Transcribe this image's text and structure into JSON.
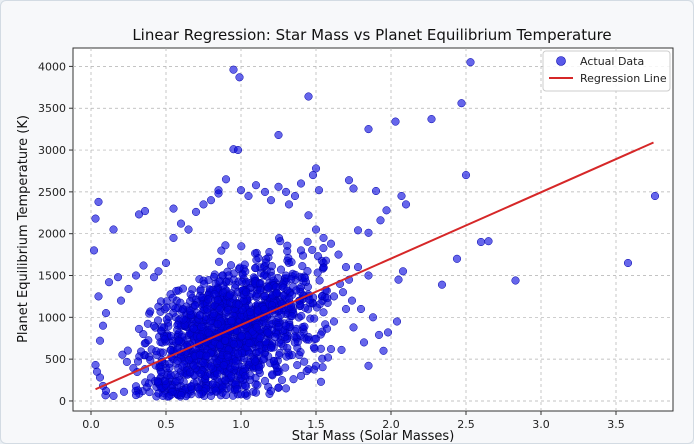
{
  "chart_data": {
    "type": "scatter",
    "title": "Linear Regression: Star Mass vs Planet Equilibrium Temperature",
    "xlabel": "Star Mass (Solar Masses)",
    "ylabel": "Planet Equilibrium Temperature (K)",
    "xlim": [
      -0.12,
      3.88
    ],
    "ylim": [
      -120,
      4220
    ],
    "xticks": [
      0.0,
      0.5,
      1.0,
      1.5,
      2.0,
      2.5,
      3.0,
      3.5
    ],
    "xtick_labels": [
      "0.0",
      "0.5",
      "1.0",
      "1.5",
      "2.0",
      "2.5",
      "3.0",
      "3.5"
    ],
    "yticks": [
      0,
      500,
      1000,
      1500,
      2000,
      2500,
      3000,
      3500,
      4000
    ],
    "ytick_labels": [
      "0",
      "500",
      "1000",
      "1500",
      "2000",
      "2500",
      "3000",
      "3500",
      "4000"
    ],
    "grid": true,
    "legend_position": "top-right",
    "series": [
      {
        "name": "Actual Data",
        "kind": "scatter",
        "color": "#0000dd",
        "points": [
          [
            0.02,
            1800
          ],
          [
            0.03,
            2180
          ],
          [
            0.05,
            2380
          ],
          [
            0.05,
            1250
          ],
          [
            0.15,
            2050
          ],
          [
            0.32,
            2230
          ],
          [
            0.36,
            2270
          ],
          [
            0.35,
            1620
          ],
          [
            0.9,
            2650
          ],
          [
            0.95,
            3960
          ],
          [
            0.99,
            3870
          ],
          [
            0.95,
            3010
          ],
          [
            0.98,
            3000
          ],
          [
            1.25,
            3180
          ],
          [
            1.45,
            3640
          ],
          [
            1.72,
            2640
          ],
          [
            1.85,
            3250
          ],
          [
            2.03,
            3340
          ],
          [
            2.27,
            3370
          ],
          [
            2.47,
            3560
          ],
          [
            2.53,
            4050
          ],
          [
            2.5,
            2700
          ],
          [
            2.6,
            1900
          ],
          [
            2.65,
            1910
          ],
          [
            2.83,
            1440
          ],
          [
            3.58,
            1650
          ],
          [
            3.76,
            2450
          ],
          [
            2.34,
            1390
          ],
          [
            2.44,
            1700
          ],
          [
            2.08,
            1550
          ],
          [
            2.05,
            1450
          ],
          [
            2.1,
            2350
          ],
          [
            2.07,
            2450
          ],
          [
            1.97,
            2280
          ],
          [
            1.93,
            2160
          ],
          [
            1.9,
            2510
          ],
          [
            1.75,
            2540
          ],
          [
            1.78,
            2040
          ],
          [
            1.85,
            2010
          ],
          [
            1.98,
            820
          ],
          [
            1.92,
            790
          ],
          [
            2.04,
            950
          ],
          [
            1.82,
            700
          ],
          [
            1.75,
            880
          ],
          [
            1.95,
            600
          ],
          [
            1.85,
            420
          ],
          [
            1.62,
            950
          ],
          [
            1.67,
            610
          ],
          [
            1.55,
            1060
          ],
          [
            1.48,
            2700
          ],
          [
            1.5,
            2780
          ],
          [
            1.52,
            2520
          ],
          [
            1.4,
            2600
          ],
          [
            1.36,
            2450
          ],
          [
            1.3,
            2500
          ],
          [
            1.25,
            2560
          ],
          [
            1.16,
            2500
          ],
          [
            1.1,
            2580
          ],
          [
            1.05,
            2450
          ],
          [
            0.85,
            2520
          ],
          [
            0.8,
            2400
          ],
          [
            0.75,
            2350
          ],
          [
            0.7,
            2260
          ],
          [
            0.65,
            2050
          ],
          [
            0.6,
            2120
          ],
          [
            0.55,
            1950
          ],
          [
            0.5,
            1650
          ],
          [
            0.45,
            1550
          ],
          [
            0.42,
            1480
          ],
          [
            0.3,
            1500
          ],
          [
            0.25,
            1340
          ],
          [
            0.2,
            1200
          ],
          [
            0.18,
            1480
          ],
          [
            0.12,
            1420
          ],
          [
            0.1,
            1050
          ],
          [
            0.08,
            900
          ],
          [
            0.06,
            720
          ],
          [
            0.03,
            430
          ],
          [
            0.04,
            350
          ],
          [
            0.06,
            280
          ],
          [
            0.08,
            180
          ],
          [
            0.1,
            120
          ],
          [
            0.15,
            60
          ],
          [
            0.22,
            110
          ],
          [
            0.3,
            70
          ],
          [
            0.45,
            90
          ],
          [
            0.48,
            60
          ],
          [
            0.52,
            55
          ],
          [
            0.6,
            70
          ],
          [
            0.72,
            80
          ],
          [
            0.8,
            60
          ],
          [
            0.9,
            70
          ],
          [
            1.0,
            80
          ],
          [
            1.1,
            100
          ],
          [
            1.2,
            120
          ],
          [
            1.25,
            160
          ],
          [
            1.3,
            150
          ],
          [
            1.35,
            260
          ],
          [
            1.4,
            300
          ],
          [
            1.45,
            380
          ],
          [
            1.5,
            420
          ],
          [
            1.58,
            520
          ],
          [
            1.6,
            620
          ],
          [
            1.4,
            1800
          ],
          [
            1.5,
            2050
          ],
          [
            1.55,
            1950
          ],
          [
            1.6,
            1880
          ],
          [
            1.65,
            1750
          ],
          [
            1.7,
            1600
          ],
          [
            1.72,
            1450
          ],
          [
            1.68,
            1300
          ],
          [
            1.74,
            1200
          ],
          [
            1.8,
            1100
          ],
          [
            1.88,
            1000
          ],
          [
            1.7,
            1100
          ],
          [
            1.62,
            1250
          ],
          [
            1.66,
            1400
          ],
          [
            1.78,
            1600
          ],
          [
            1.85,
            1500
          ],
          [
            0.55,
            2300
          ],
          [
            0.85,
            2480
          ],
          [
            1.0,
            2520
          ],
          [
            1.2,
            2400
          ],
          [
            1.32,
            2350
          ],
          [
            1.45,
            2220
          ]
        ],
        "dense_cloud": {
          "description_note": "bulk of observations concentrated roughly between these bounds",
          "x_range": [
            0.03,
            1.6
          ],
          "y_range": [
            50,
            2500
          ],
          "center": [
            0.95,
            900
          ]
        }
      },
      {
        "name": "Regression Line",
        "kind": "line",
        "color": "#d62728",
        "x": [
          0.03,
          3.75
        ],
        "y": [
          140,
          3090
        ]
      }
    ]
  }
}
